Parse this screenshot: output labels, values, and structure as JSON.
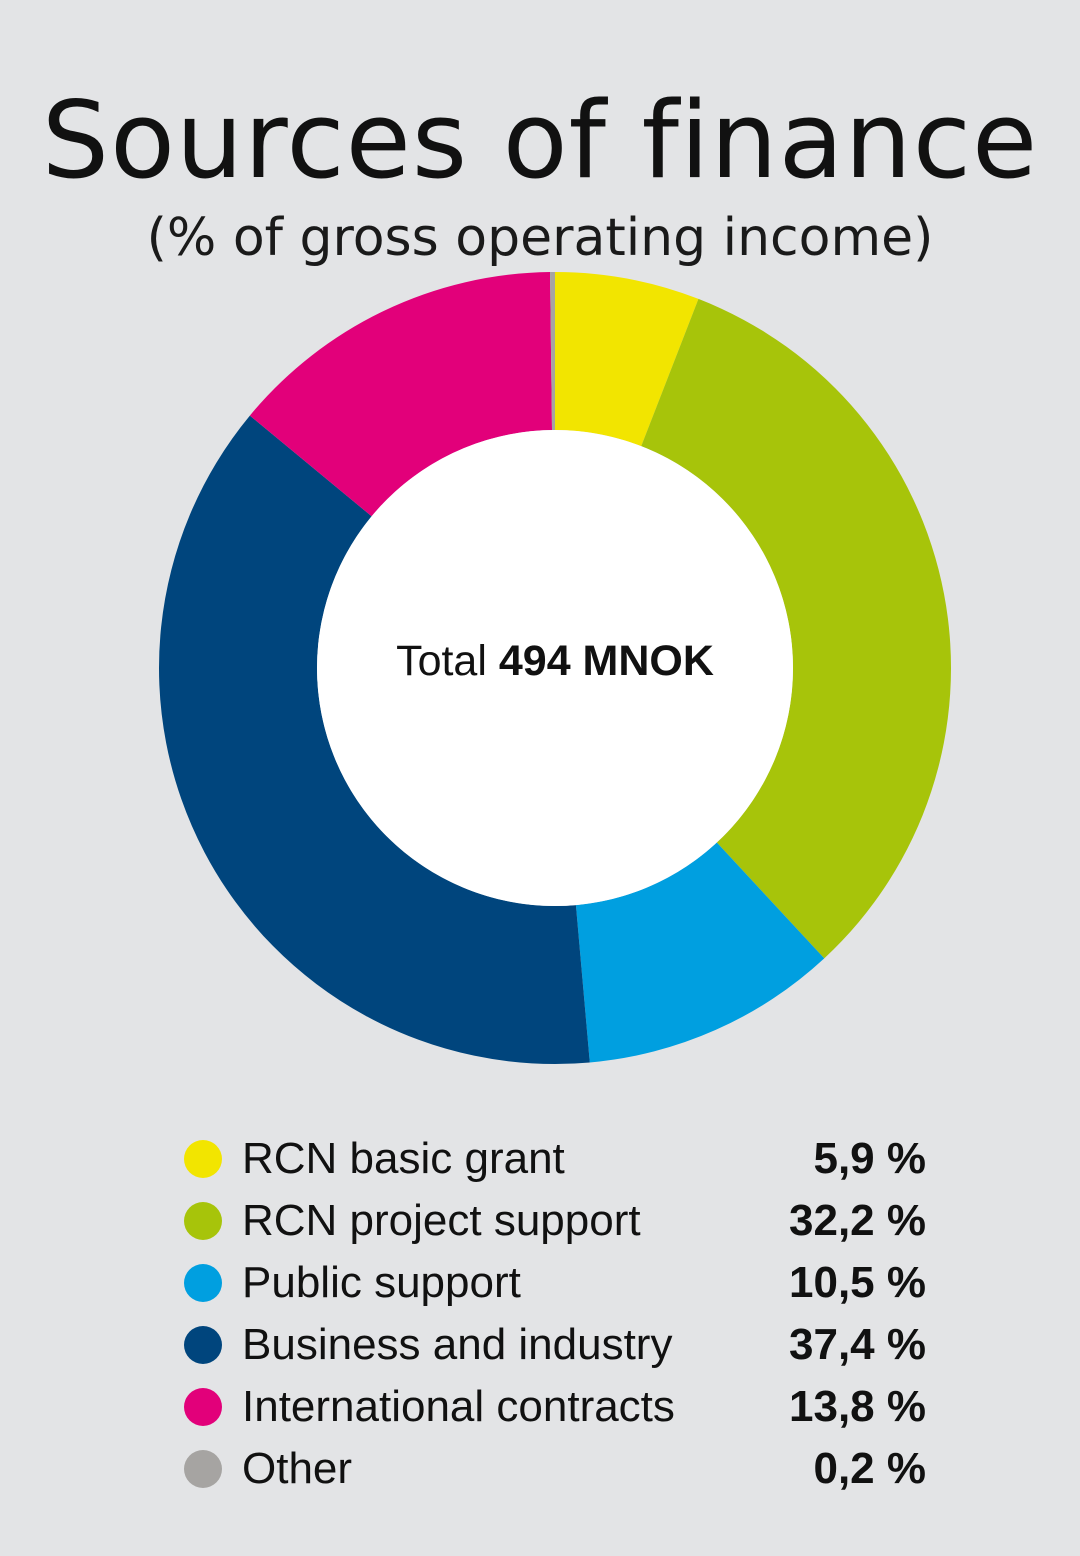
{
  "title": "Sources of finance",
  "subtitle": "(% of gross operating income)",
  "center": {
    "prefix": "Total",
    "value": "494 MNOK"
  },
  "chart_data": {
    "type": "pie",
    "variant": "donut",
    "title": "Sources of finance",
    "subtitle": "(% of gross operating income)",
    "total_label": "Total 494 MNOK",
    "slices": [
      {
        "name": "RCN basic grant",
        "value": 5.9,
        "label": "5,9 %",
        "color": "#f2e500"
      },
      {
        "name": "RCN project support",
        "value": 32.2,
        "label": "32,2 %",
        "color": "#a7c40a"
      },
      {
        "name": "Public support",
        "value": 10.5,
        "label": "10,5 %",
        "color": "#009fe0"
      },
      {
        "name": "Business and industry",
        "value": 37.4,
        "label": "37,4 %",
        "color": "#00457d"
      },
      {
        "name": "International contracts",
        "value": 13.8,
        "label": "13,8 %",
        "color": "#e2007a"
      },
      {
        "name": "Other",
        "value": 0.2,
        "label": "0,2 %",
        "color": "#a6a4a2"
      }
    ],
    "start": "top",
    "direction": "clockwise",
    "legend_position": "bottom"
  }
}
